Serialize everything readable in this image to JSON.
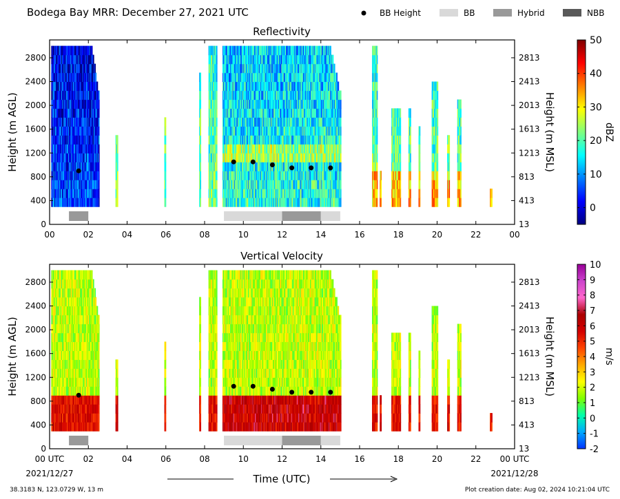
{
  "header": {
    "title": "Bodega Bay MRR:  December 27, 2021 UTC",
    "legend": [
      {
        "label": "BB Height",
        "kind": "dot",
        "color": "#000000"
      },
      {
        "label": "BB",
        "kind": "box",
        "color": "#d9d9d9"
      },
      {
        "label": "Hybrid",
        "kind": "box",
        "color": "#999999"
      },
      {
        "label": "NBB",
        "kind": "box",
        "color": "#595959"
      }
    ]
  },
  "footer": {
    "location": "38.3183 N, 123.0729 W, 13 m",
    "creation": "Plot creation date: Aug 02, 2024 10:21:04 UTC",
    "xlabel": "Time (UTC)",
    "start_date": "2021/12/27",
    "end_date": "2021/12/28"
  },
  "colors": {
    "bb": "#d9d9d9",
    "hybrid": "#999999",
    "nbb": "#595959",
    "bb_dot": "#000000"
  },
  "chart_data": [
    {
      "type": "heatmap",
      "title": "Reflectivity",
      "ylabel": "Height (m AGL)",
      "ylabel_right": "Height (m MSL)",
      "colorbar_label": "dBZ",
      "xlim": [
        0,
        24
      ],
      "x_ticks": [
        "00",
        "02",
        "04",
        "06",
        "08",
        "10",
        "12",
        "14",
        "16",
        "18",
        "20",
        "22",
        "00"
      ],
      "ylim": [
        0,
        3100
      ],
      "y_ticks": [
        0,
        400,
        800,
        1200,
        1600,
        2000,
        2400,
        2800
      ],
      "y_ticks_right": [
        "13",
        "413",
        "813",
        "1213",
        "1613",
        "2013",
        "2413",
        "2813"
      ],
      "clim": [
        -5,
        50
      ],
      "colorbar_ticks": [
        "0",
        "10",
        "20",
        "30",
        "40",
        "50"
      ],
      "colormap": [
        "#00007f",
        "#0000ff",
        "#007fff",
        "#00ffff",
        "#7fff7f",
        "#ffff00",
        "#ff7f00",
        "#ff0000",
        "#7f0000"
      ],
      "bb_height": [
        {
          "t": 1.5,
          "h": 900
        },
        {
          "t": 9.5,
          "h": 1050
        },
        {
          "t": 10.5,
          "h": 1050
        },
        {
          "t": 11.5,
          "h": 1000
        },
        {
          "t": 12.5,
          "h": 950
        },
        {
          "t": 13.5,
          "h": 950
        },
        {
          "t": 14.5,
          "h": 950
        }
      ],
      "bb_segments": [
        {
          "start": 1.0,
          "end": 2.0,
          "type": "hybrid"
        },
        {
          "start": 9.0,
          "end": 12.0,
          "type": "bb"
        },
        {
          "start": 12.0,
          "end": 14.0,
          "type": "hybrid"
        },
        {
          "start": 14.0,
          "end": 15.0,
          "type": "bb"
        }
      ]
    },
    {
      "type": "heatmap",
      "title": "Vertical Velocity",
      "ylabel": "Height (m AGL)",
      "ylabel_right": "Height (m MSL)",
      "colorbar_label": "m/s",
      "xlim": [
        0,
        24
      ],
      "x_ticks": [
        "00 UTC",
        "02",
        "04",
        "06",
        "08",
        "10",
        "12",
        "14",
        "16",
        "18",
        "20",
        "22",
        "00 UTC"
      ],
      "ylim": [
        0,
        3100
      ],
      "y_ticks": [
        0,
        400,
        800,
        1200,
        1600,
        2000,
        2400,
        2800
      ],
      "y_ticks_right": [
        "13",
        "413",
        "813",
        "1213",
        "1613",
        "2013",
        "2413",
        "2813"
      ],
      "clim": [
        -2,
        10
      ],
      "colorbar_ticks": [
        "-2",
        "-1",
        "0",
        "1",
        "2",
        "3",
        "4",
        "5",
        "6",
        "7",
        "8",
        "9",
        "10"
      ],
      "colormap": [
        "#0033ff",
        "#00aaff",
        "#00ffaa",
        "#7fff00",
        "#ffff00",
        "#ffaa00",
        "#ff4400",
        "#d40000",
        "#aa0000",
        "#ff66cc",
        "#cc44cc",
        "#990099"
      ],
      "bb_height": [
        {
          "t": 1.5,
          "h": 900
        },
        {
          "t": 9.5,
          "h": 1050
        },
        {
          "t": 10.5,
          "h": 1050
        },
        {
          "t": 11.5,
          "h": 1000
        },
        {
          "t": 12.5,
          "h": 950
        },
        {
          "t": 13.5,
          "h": 950
        },
        {
          "t": 14.5,
          "h": 950
        }
      ],
      "bb_segments": [
        {
          "start": 1.0,
          "end": 2.0,
          "type": "hybrid"
        },
        {
          "start": 9.0,
          "end": 12.0,
          "type": "bb"
        },
        {
          "start": 12.0,
          "end": 14.0,
          "type": "hybrid"
        },
        {
          "start": 14.0,
          "end": 15.0,
          "type": "bb"
        }
      ]
    }
  ]
}
